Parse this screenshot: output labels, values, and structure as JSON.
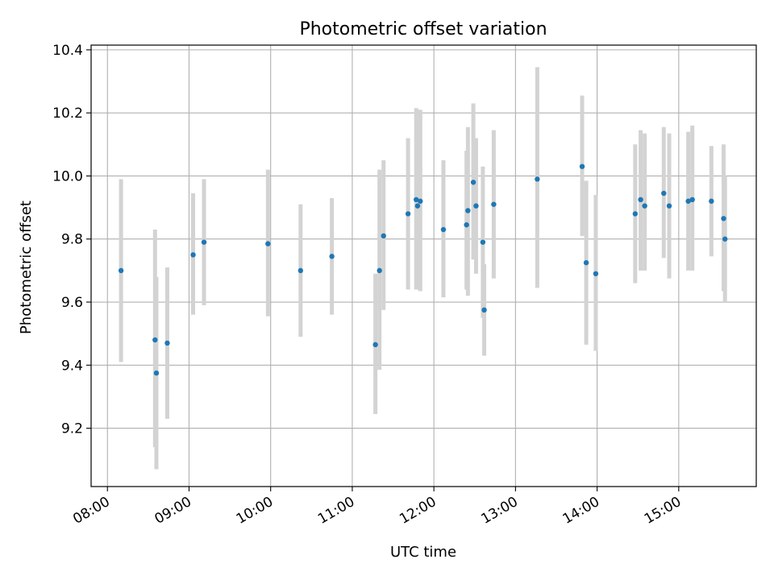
{
  "chart_data": {
    "type": "scatter",
    "title": "Photometric offset variation",
    "xlabel": "UTC time",
    "ylabel": "Photometric offset",
    "xlim": [
      "07:48",
      "15:57"
    ],
    "ylim": [
      9.015,
      10.415
    ],
    "grid": true,
    "x_ticks": [
      "08:00",
      "09:00",
      "10:00",
      "11:00",
      "12:00",
      "13:00",
      "14:00",
      "15:00"
    ],
    "y_ticks": [
      "9.2",
      "9.4",
      "9.6",
      "9.8",
      "10.0",
      "10.2",
      "10.4"
    ],
    "errorbar_color": "#d3d3d3",
    "marker_color": "#1f77b4",
    "points": [
      {
        "x": "08:10",
        "y": 9.7,
        "ylo": 9.41,
        "yhi": 9.99
      },
      {
        "x": "08:35",
        "y": 9.48,
        "ylo": 9.14,
        "yhi": 9.83
      },
      {
        "x": "08:36",
        "y": 9.375,
        "ylo": 9.07,
        "yhi": 9.68
      },
      {
        "x": "08:44",
        "y": 9.47,
        "ylo": 9.23,
        "yhi": 9.71
      },
      {
        "x": "09:03",
        "y": 9.75,
        "ylo": 9.56,
        "yhi": 9.945
      },
      {
        "x": "09:11",
        "y": 9.79,
        "ylo": 9.59,
        "yhi": 9.99
      },
      {
        "x": "09:58",
        "y": 9.785,
        "ylo": 9.555,
        "yhi": 10.02
      },
      {
        "x": "10:22",
        "y": 9.7,
        "ylo": 9.49,
        "yhi": 9.91
      },
      {
        "x": "10:45",
        "y": 9.745,
        "ylo": 9.56,
        "yhi": 9.93
      },
      {
        "x": "11:17",
        "y": 9.465,
        "ylo": 9.245,
        "yhi": 9.69
      },
      {
        "x": "11:20",
        "y": 9.7,
        "ylo": 9.385,
        "yhi": 10.02
      },
      {
        "x": "11:23",
        "y": 9.81,
        "ylo": 9.575,
        "yhi": 10.05
      },
      {
        "x": "11:41",
        "y": 9.88,
        "ylo": 9.64,
        "yhi": 10.12
      },
      {
        "x": "11:47",
        "y": 9.925,
        "ylo": 9.64,
        "yhi": 10.215
      },
      {
        "x": "11:48",
        "y": 9.905,
        "ylo": 9.64,
        "yhi": 10.21
      },
      {
        "x": "11:50",
        "y": 9.92,
        "ylo": 9.635,
        "yhi": 10.21
      },
      {
        "x": "12:07",
        "y": 9.83,
        "ylo": 9.615,
        "yhi": 10.05
      },
      {
        "x": "12:24",
        "y": 9.845,
        "ylo": 9.64,
        "yhi": 10.08
      },
      {
        "x": "12:25",
        "y": 9.89,
        "ylo": 9.62,
        "yhi": 10.155
      },
      {
        "x": "12:29",
        "y": 9.98,
        "ylo": 9.735,
        "yhi": 10.23
      },
      {
        "x": "12:31",
        "y": 9.905,
        "ylo": 9.69,
        "yhi": 10.12
      },
      {
        "x": "12:36",
        "y": 9.79,
        "ylo": 9.55,
        "yhi": 10.03
      },
      {
        "x": "12:37",
        "y": 9.575,
        "ylo": 9.43,
        "yhi": 9.72
      },
      {
        "x": "12:44",
        "y": 9.91,
        "ylo": 9.675,
        "yhi": 10.145
      },
      {
        "x": "13:16",
        "y": 9.99,
        "ylo": 9.645,
        "yhi": 10.345
      },
      {
        "x": "13:49",
        "y": 10.03,
        "ylo": 9.81,
        "yhi": 10.255
      },
      {
        "x": "13:52",
        "y": 9.725,
        "ylo": 9.465,
        "yhi": 9.985
      },
      {
        "x": "13:59",
        "y": 9.69,
        "ylo": 9.445,
        "yhi": 9.94
      },
      {
        "x": "14:28",
        "y": 9.88,
        "ylo": 9.66,
        "yhi": 10.1
      },
      {
        "x": "14:32",
        "y": 9.925,
        "ylo": 9.7,
        "yhi": 10.145
      },
      {
        "x": "14:35",
        "y": 9.905,
        "ylo": 9.7,
        "yhi": 10.135
      },
      {
        "x": "14:49",
        "y": 9.945,
        "ylo": 9.74,
        "yhi": 10.155
      },
      {
        "x": "14:53",
        "y": 9.905,
        "ylo": 9.675,
        "yhi": 10.135
      },
      {
        "x": "15:07",
        "y": 9.92,
        "ylo": 9.7,
        "yhi": 10.14
      },
      {
        "x": "15:10",
        "y": 9.925,
        "ylo": 9.7,
        "yhi": 10.16
      },
      {
        "x": "15:24",
        "y": 9.92,
        "ylo": 9.745,
        "yhi": 10.095
      },
      {
        "x": "15:33",
        "y": 9.865,
        "ylo": 9.635,
        "yhi": 10.1
      },
      {
        "x": "15:34",
        "y": 9.8,
        "ylo": 9.6,
        "yhi": 10.0
      }
    ]
  }
}
